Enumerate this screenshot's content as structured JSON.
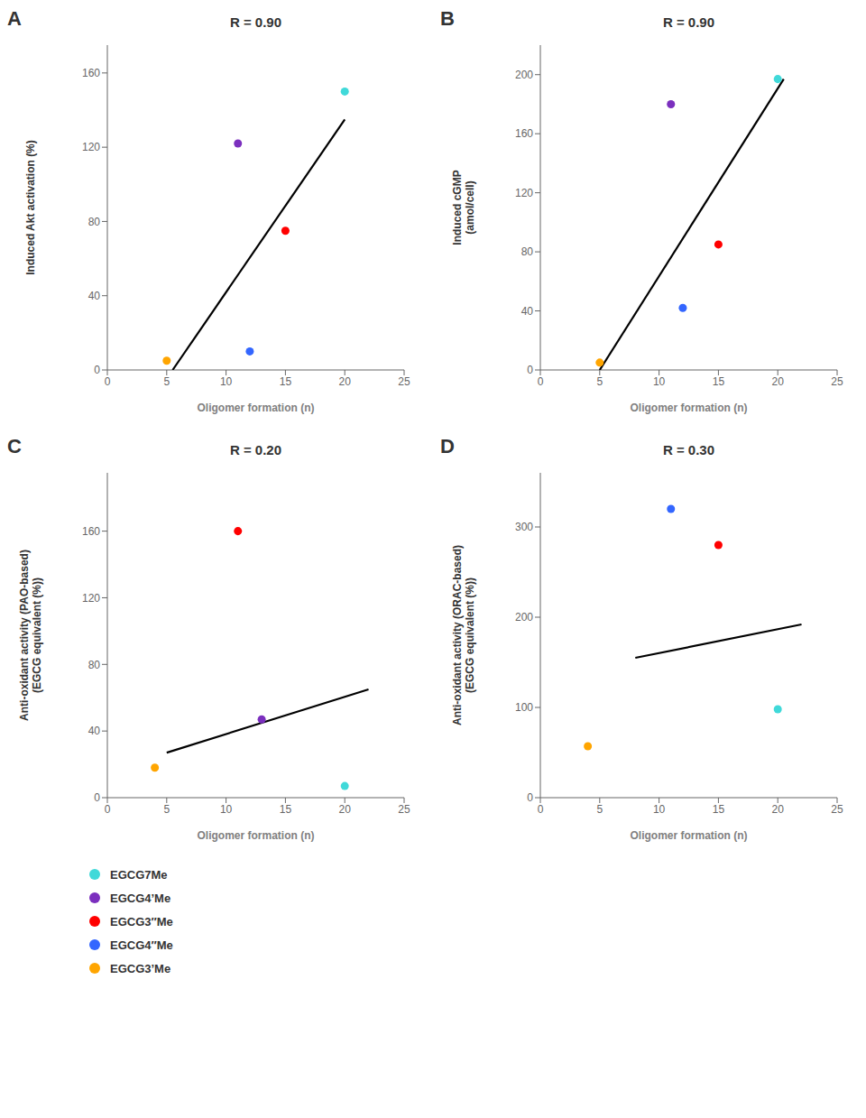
{
  "chart_data": [
    {
      "type": "scatter",
      "annotations": [
        "A"
      ],
      "title": "R = 0.90",
      "xlabel": "Oligomer formation (n)",
      "ylabel": "Induced Akt activation (%)",
      "xlim": [
        0,
        25
      ],
      "ylim": [
        0,
        175
      ],
      "xticks": [
        0,
        5,
        10,
        15,
        20,
        25
      ],
      "yticks": [
        0,
        40,
        80,
        120,
        160
      ],
      "series": [
        {
          "type": "line",
          "color": "#000000",
          "x": [
            5.5,
            20
          ],
          "values": [
            0,
            135
          ]
        },
        {
          "name": "EGCG7Me",
          "color": "#40D9D9",
          "x": [
            20
          ],
          "values": [
            150
          ]
        },
        {
          "name": "EGCG4’Me",
          "color": "#7B2FBE",
          "x": [
            11
          ],
          "values": [
            122
          ]
        },
        {
          "name": "EGCG3″Me",
          "color": "#FF0000",
          "x": [
            15
          ],
          "values": [
            75
          ]
        },
        {
          "name": "EGCG4″Me",
          "color": "#3366FF",
          "x": [
            12
          ],
          "values": [
            10
          ]
        },
        {
          "name": "EGCG3’Me",
          "color": "#FFA500",
          "x": [
            5
          ],
          "values": [
            5
          ]
        }
      ]
    },
    {
      "type": "scatter",
      "annotations": [
        "B"
      ],
      "title": "R = 0.90",
      "xlabel": "Oligomer formation (n)",
      "ylabel": "Induced cGMP\n(amol/cell)",
      "xlim": [
        0,
        25
      ],
      "ylim": [
        0,
        220
      ],
      "xticks": [
        0,
        5,
        10,
        15,
        20,
        25
      ],
      "yticks": [
        0,
        40,
        80,
        120,
        160,
        200
      ],
      "series": [
        {
          "type": "line",
          "color": "#000000",
          "x": [
            5,
            20.5
          ],
          "values": [
            0,
            197
          ]
        },
        {
          "name": "EGCG7Me",
          "color": "#40D9D9",
          "x": [
            20
          ],
          "values": [
            197
          ]
        },
        {
          "name": "EGCG4’Me",
          "color": "#7B2FBE",
          "x": [
            11
          ],
          "values": [
            180
          ]
        },
        {
          "name": "EGCG3″Me",
          "color": "#FF0000",
          "x": [
            15
          ],
          "values": [
            85
          ]
        },
        {
          "name": "EGCG4″Me",
          "color": "#3366FF",
          "x": [
            12
          ],
          "values": [
            42
          ]
        },
        {
          "name": "EGCG3’Me",
          "color": "#FFA500",
          "x": [
            5
          ],
          "values": [
            5
          ]
        }
      ]
    },
    {
      "type": "scatter",
      "annotations": [
        "C"
      ],
      "title": "R = 0.20",
      "xlabel": "Oligomer formation (n)",
      "ylabel": "Anti-oxidant activity (PAO-based)\n(EGCG equivalent (%))",
      "xlim": [
        0,
        25
      ],
      "ylim": [
        0,
        195
      ],
      "xticks": [
        0,
        5,
        10,
        15,
        20,
        25
      ],
      "yticks": [
        0,
        40,
        80,
        120,
        160
      ],
      "series": [
        {
          "type": "line",
          "color": "#000000",
          "x": [
            5,
            22
          ],
          "values": [
            27,
            65
          ]
        },
        {
          "name": "EGCG7Me",
          "color": "#40D9D9",
          "x": [
            20
          ],
          "values": [
            7
          ]
        },
        {
          "name": "EGCG4’Me",
          "color": "#7B2FBE",
          "x": [
            13
          ],
          "values": [
            47
          ]
        },
        {
          "name": "EGCG3″Me",
          "color": "#FF0000",
          "x": [
            11
          ],
          "values": [
            160
          ]
        },
        {
          "name": "EGCG3’Me",
          "color": "#FFA500",
          "x": [
            4
          ],
          "values": [
            18
          ]
        }
      ]
    },
    {
      "type": "scatter",
      "annotations": [
        "D"
      ],
      "title": "R = 0.30",
      "xlabel": "Oligomer formation (n)",
      "ylabel": "Anti-oxidant activity (ORAC-based)\n(EGCG equivalent (%))",
      "xlim": [
        0,
        25
      ],
      "ylim": [
        0,
        360
      ],
      "xticks": [
        0,
        5,
        10,
        15,
        20,
        25
      ],
      "yticks": [
        0,
        100,
        200,
        300
      ],
      "series": [
        {
          "type": "line",
          "color": "#000000",
          "x": [
            8,
            22
          ],
          "values": [
            155,
            192
          ]
        },
        {
          "name": "EGCG7Me",
          "color": "#40D9D9",
          "x": [
            20
          ],
          "values": [
            98
          ]
        },
        {
          "name": "EGCG3″Me",
          "color": "#FF0000",
          "x": [
            15
          ],
          "values": [
            280
          ]
        },
        {
          "name": "EGCG4″Me",
          "color": "#3366FF",
          "x": [
            11
          ],
          "values": [
            320
          ]
        },
        {
          "name": "EGCG3’Me",
          "color": "#FFA500",
          "x": [
            4
          ],
          "values": [
            57
          ]
        }
      ]
    }
  ]
}
